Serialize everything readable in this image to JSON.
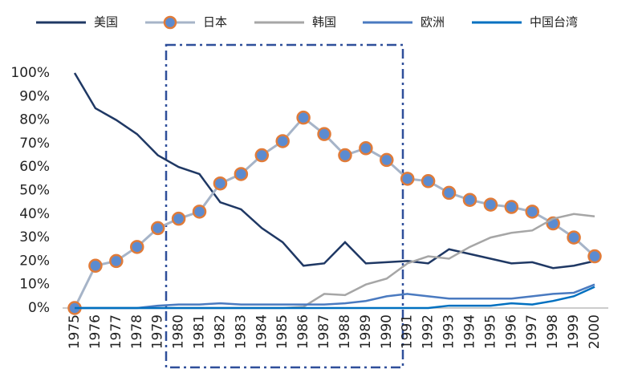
{
  "chart_data": {
    "type": "line",
    "categories": [
      "1975",
      "1976",
      "1977",
      "1978",
      "1979",
      "1980",
      "1981",
      "1982",
      "1983",
      "1984",
      "1985",
      "1986",
      "1987",
      "1988",
      "1989",
      "1990",
      "1991",
      "1992",
      "1993",
      "1994",
      "1995",
      "1996",
      "1997",
      "1998",
      "1999",
      "2000"
    ],
    "series": [
      {
        "name": "美国",
        "color": "#1f3864",
        "values": [
          100,
          85,
          80,
          74,
          65,
          60,
          57,
          45,
          42,
          34,
          28,
          18,
          19,
          28,
          19,
          19.5,
          20,
          19,
          25,
          23,
          21,
          19,
          19.5,
          17,
          18,
          20
        ]
      },
      {
        "name": "日本",
        "color": "#a6b4c8",
        "marker_fill": "#5b8bd0",
        "marker_edge": "#e07b39",
        "values": [
          0,
          18,
          20,
          26,
          34,
          38,
          41,
          53,
          57,
          65,
          71,
          81,
          74,
          65,
          68,
          63,
          55,
          54,
          49,
          46,
          44,
          43,
          41,
          36,
          30,
          22
        ]
      },
      {
        "name": "韩国",
        "color": "#a6a6a6",
        "values": [
          0,
          0,
          0,
          0,
          0,
          0,
          0,
          0,
          0,
          0,
          0,
          0.5,
          6,
          5.5,
          10,
          12.5,
          19,
          22,
          21,
          26,
          30,
          32,
          33,
          38,
          40,
          39
        ]
      },
      {
        "name": "欧洲",
        "color": "#4a7ac0",
        "values": [
          0,
          0,
          0,
          0,
          1,
          1.5,
          1.5,
          2,
          1.5,
          1.5,
          1.5,
          1.5,
          1.5,
          2,
          3,
          5,
          6,
          5,
          4,
          4,
          4,
          4,
          5,
          6,
          6.5,
          10
        ]
      },
      {
        "name": "中国台湾",
        "color": "#0070c0",
        "values": [
          0,
          0,
          0,
          0,
          0,
          0,
          0,
          0,
          0,
          0,
          0,
          0,
          0,
          0,
          0,
          0,
          0,
          0,
          1,
          1,
          1,
          2,
          1.5,
          3,
          5,
          9
        ]
      }
    ],
    "ylim": [
      0,
      100
    ],
    "yticks": [
      {
        "value": 0,
        "label": "0%"
      },
      {
        "value": 10,
        "label": "10%"
      },
      {
        "value": 20,
        "label": "20%"
      },
      {
        "value": 30,
        "label": "30%"
      },
      {
        "value": 40,
        "label": "40%"
      },
      {
        "value": 50,
        "label": "50%"
      },
      {
        "value": 60,
        "label": "60%"
      },
      {
        "value": 70,
        "label": "70%"
      },
      {
        "value": 80,
        "label": "80%"
      },
      {
        "value": 90,
        "label": "90%"
      },
      {
        "value": 100,
        "label": "100%"
      }
    ],
    "grid": false
  }
}
